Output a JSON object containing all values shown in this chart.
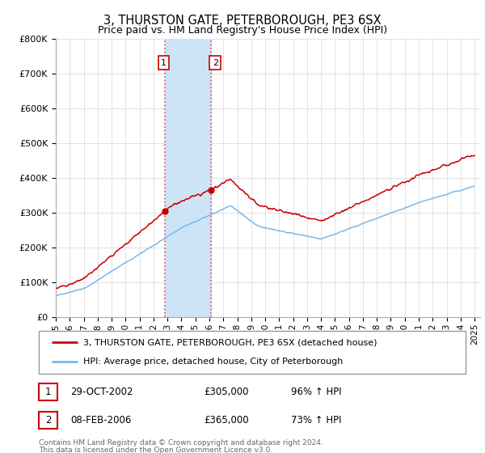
{
  "title": "3, THURSTON GATE, PETERBOROUGH, PE3 6SX",
  "subtitle": "Price paid vs. HM Land Registry's House Price Index (HPI)",
  "ylabel_ticks": [
    "£0",
    "£100K",
    "£200K",
    "£300K",
    "£400K",
    "£500K",
    "£600K",
    "£700K",
    "£800K"
  ],
  "ylim": [
    0,
    800000
  ],
  "hpi_color": "#7ab8e8",
  "price_color": "#cc0000",
  "shade_color": "#cce4f5",
  "transaction1": {
    "date": "29-OCT-2002",
    "price": 305000,
    "label": "1",
    "hpi_pct": "96% ↑ HPI",
    "x": 2002.83
  },
  "transaction2": {
    "date": "08-FEB-2006",
    "price": 365000,
    "label": "2",
    "hpi_pct": "73% ↑ HPI",
    "x": 2006.12
  },
  "legend_house": "3, THURSTON GATE, PETERBOROUGH, PE3 6SX (detached house)",
  "legend_hpi": "HPI: Average price, detached house, City of Peterborough",
  "footer1": "Contains HM Land Registry data © Crown copyright and database right 2024.",
  "footer2": "This data is licensed under the Open Government Licence v3.0.",
  "table_rows": [
    {
      "num": "1",
      "date": "29-OCT-2002",
      "price": "£305,000",
      "hpi": "96% ↑ HPI"
    },
    {
      "num": "2",
      "date": "08-FEB-2006",
      "price": "£365,000",
      "hpi": "73% ↑ HPI"
    }
  ]
}
